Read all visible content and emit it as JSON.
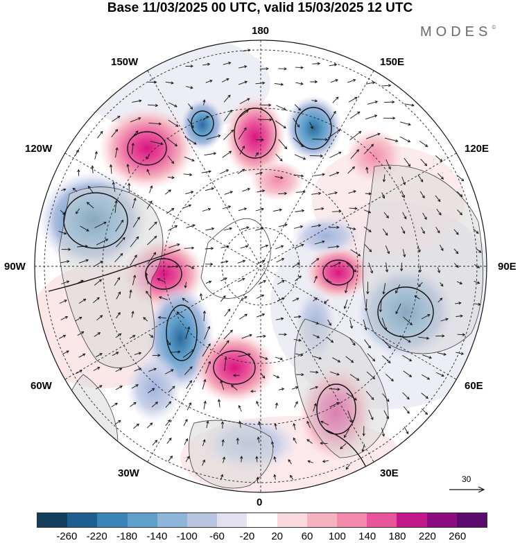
{
  "header": {
    "title": "Base 11/03/2025 00 UTC, valid 15/03/2025 12 UTC",
    "brand": "MODES",
    "brand_mark": "©"
  },
  "map": {
    "projection": "north polar stereographic",
    "longitude_labels": {
      "top": "180",
      "bottom": "0",
      "left": "90W",
      "right": "90E",
      "upper_left_1": "150W",
      "upper_left_2": "120W",
      "lower_left_1": "60W",
      "lower_left_2": "30W",
      "upper_right_1": "150E",
      "upper_right_2": "120E",
      "lower_right_1": "60E",
      "lower_right_2": "30E"
    },
    "vector_reference": {
      "value": "30"
    },
    "anomaly_centers": [
      {
        "sign": "positive",
        "region": "North Pacific near 150W"
      },
      {
        "sign": "negative",
        "region": "Gulf of Alaska / western Canada"
      },
      {
        "sign": "positive",
        "region": "Hudson Bay"
      },
      {
        "sign": "negative",
        "region": "eastern North America"
      },
      {
        "sign": "positive",
        "region": "central North Atlantic"
      },
      {
        "sign": "positive",
        "region": "Black Sea / Turkey"
      },
      {
        "sign": "negative",
        "region": "western Siberia"
      },
      {
        "sign": "positive",
        "region": "central Siberia 90E"
      },
      {
        "sign": "negative",
        "region": "eastern Siberia"
      },
      {
        "sign": "positive",
        "region": "Bering Strait"
      }
    ]
  },
  "colorbar": {
    "ticks": [
      "-260",
      "-220",
      "-180",
      "-140",
      "-100",
      "-60",
      "-20",
      "20",
      "60",
      "100",
      "140",
      "180",
      "220",
      "260"
    ],
    "colors": [
      "#133f5c",
      "#1f5f8f",
      "#3a84b8",
      "#5e9fcb",
      "#8eb6da",
      "#b9c6e2",
      "#e1e1f0",
      "#ffffff",
      "#f9d9de",
      "#f5b3bf",
      "#f28bab",
      "#e9559c",
      "#c2188a",
      "#8b0d80",
      "#5b0a6e"
    ]
  }
}
